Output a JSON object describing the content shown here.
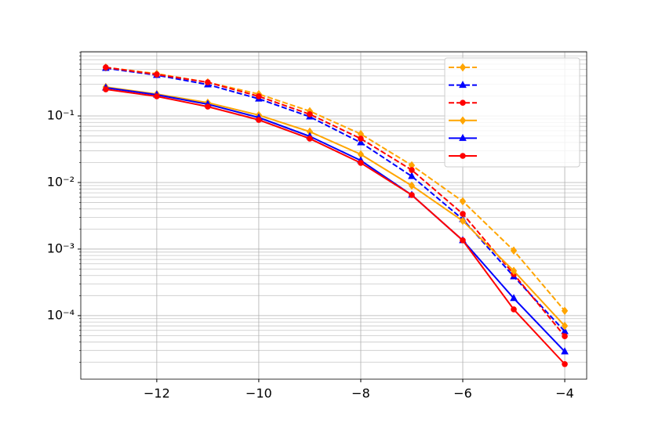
{
  "chart_data": {
    "type": "line",
    "log_y": true,
    "grid": true,
    "x": [
      -13,
      -12,
      -11,
      -10,
      -9,
      -8,
      -7,
      -6,
      -5,
      -4
    ],
    "xlim": [
      -13.49,
      -3.57
    ],
    "xticks": [
      {
        "value": -12,
        "label": "−12"
      },
      {
        "value": -10,
        "label": "−10"
      },
      {
        "value": -8,
        "label": "−8"
      },
      {
        "value": -6,
        "label": "−6"
      },
      {
        "value": -4,
        "label": "−4"
      }
    ],
    "ylim": [
      1.11e-05,
      0.923
    ],
    "yticks": [
      {
        "value": 0.1,
        "label": "10⁻¹"
      },
      {
        "value": 0.01,
        "label": "10⁻²"
      },
      {
        "value": 0.001,
        "label": "10⁻³"
      },
      {
        "value": 0.0001,
        "label": "10⁻⁴"
      }
    ],
    "yminorticks": [
      2e-05,
      3e-05,
      4e-05,
      5e-05,
      6e-05,
      7e-05,
      8e-05,
      9e-05,
      0.0002,
      0.0003,
      0.0004,
      0.0005,
      0.0006,
      0.0007,
      0.0008,
      0.0009,
      0.002,
      0.003,
      0.004,
      0.005,
      0.006,
      0.007,
      0.008,
      0.009,
      0.02,
      0.03,
      0.04,
      0.05,
      0.06,
      0.07,
      0.08,
      0.09,
      0.2,
      0.3,
      0.4,
      0.5,
      0.6,
      0.7,
      0.8,
      0.9
    ],
    "legend": "upper right",
    "series": [
      {
        "color": "#ffa500",
        "dash": true,
        "marker": "diamond",
        "values": [
          0.536,
          0.431,
          0.32,
          0.213,
          0.118,
          0.0536,
          0.0181,
          0.00522,
          0.00095,
          0.000118
        ]
      },
      {
        "color": "#0000ff",
        "dash": true,
        "marker": "triangle",
        "values": [
          0.522,
          0.41,
          0.296,
          0.181,
          0.0973,
          0.0398,
          0.0124,
          0.0028,
          0.000387,
          5.8e-05
        ]
      },
      {
        "color": "#ff0000",
        "dash": true,
        "marker": "circle",
        "values": [
          0.536,
          0.42,
          0.32,
          0.197,
          0.106,
          0.0456,
          0.0154,
          0.00338,
          0.00042,
          4.9e-05
        ]
      },
      {
        "color": "#ffa500",
        "dash": false,
        "marker": "diamond",
        "values": [
          0.272,
          0.213,
          0.158,
          0.103,
          0.058,
          0.0265,
          0.00897,
          0.00265,
          0.00047,
          7e-05
        ]
      },
      {
        "color": "#0000ff",
        "dash": false,
        "marker": "triangle",
        "values": [
          0.265,
          0.208,
          0.15,
          0.0947,
          0.0494,
          0.0214,
          0.00649,
          0.00135,
          0.000182,
          2.88e-05
        ]
      },
      {
        "color": "#ff0000",
        "dash": false,
        "marker": "circle",
        "values": [
          0.251,
          0.197,
          0.138,
          0.0873,
          0.0456,
          0.0197,
          0.00649,
          0.00135,
          0.000124,
          1.87e-05
        ]
      }
    ]
  }
}
